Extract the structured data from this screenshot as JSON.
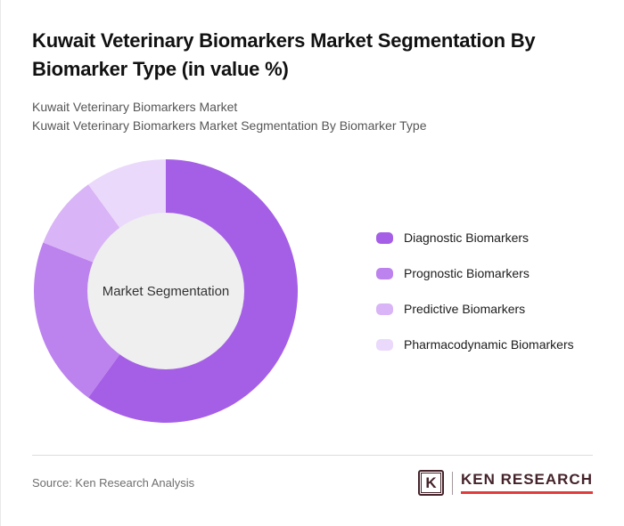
{
  "page": {
    "title": "Kuwait Veterinary Biomarkers Market Segmentation By Biomarker Type (in value %)",
    "subtitle_line1": "Kuwait Veterinary Biomarkers Market",
    "subtitle_line2": "Kuwait Veterinary Biomarkers Market Segmentation By Biomarker Type"
  },
  "chart_data": {
    "type": "pie",
    "variant": "donut",
    "title": "Kuwait Veterinary Biomarkers Market Segmentation By Biomarker Type (in value %)",
    "center_label": "Market Segmentation",
    "legend_position": "right",
    "start_angle_deg": 0,
    "direction": "clockwise",
    "inner_circle_color": "#efefef",
    "segments": [
      {
        "label": "Diagnostic Biomarkers",
        "value": 60,
        "color": "#a55fe6"
      },
      {
        "label": "Prognostic Biomarkers",
        "value": 21,
        "color": "#bc82ee"
      },
      {
        "label": "Predictive Biomarkers",
        "value": 9,
        "color": "#d9b4f6"
      },
      {
        "label": "Pharmacodynamic Biomarkers",
        "value": 10,
        "color": "#ead9fb"
      }
    ]
  },
  "footer": {
    "source": "Source: Ken Research Analysis",
    "logo": {
      "k_letter": "K",
      "text": "KEN RESEARCH",
      "accent_color": "#e23b3b",
      "brand_color": "#45232b"
    }
  }
}
